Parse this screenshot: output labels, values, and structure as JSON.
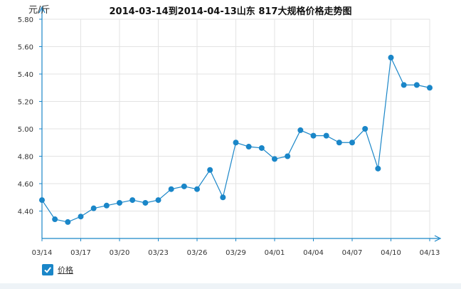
{
  "chart_data": {
    "type": "line",
    "title": "2014-03-14到2014-04-13山东  817大规格价格走势图",
    "ylabel": "元/斤",
    "xlabel": "",
    "ylim": [
      4.2,
      5.8
    ],
    "yticks": [
      "4.40",
      "4.60",
      "4.80",
      "5.00",
      "5.20",
      "5.40",
      "5.60",
      "5.80"
    ],
    "xtick_labels": [
      "03/14",
      "03/17",
      "03/20",
      "03/23",
      "03/26",
      "03/29",
      "04/01",
      "04/04",
      "04/07",
      "04/10",
      "04/13"
    ],
    "x": [
      "03/14",
      "03/15",
      "03/16",
      "03/17",
      "03/18",
      "03/19",
      "03/20",
      "03/21",
      "03/22",
      "03/23",
      "03/24",
      "03/25",
      "03/26",
      "03/27",
      "03/28",
      "03/29",
      "03/30",
      "03/31",
      "04/01",
      "04/02",
      "04/03",
      "04/04",
      "04/05",
      "04/06",
      "04/07",
      "04/08",
      "04/09",
      "04/10",
      "04/11",
      "04/12",
      "04/13"
    ],
    "series": [
      {
        "name": "价格",
        "color": "#1a86c8",
        "values": [
          4.48,
          4.34,
          4.32,
          4.36,
          4.42,
          4.44,
          4.46,
          4.48,
          4.46,
          4.48,
          4.56,
          4.58,
          4.56,
          4.7,
          4.5,
          4.9,
          4.87,
          4.86,
          4.78,
          4.8,
          4.99,
          4.95,
          4.95,
          4.9,
          4.9,
          5.0,
          4.71,
          5.52,
          5.32,
          5.32,
          5.3
        ]
      }
    ],
    "grid": true,
    "legend_position": "bottom-left"
  },
  "legend": {
    "label": "价格",
    "checked": true,
    "check_icon": "check-icon"
  }
}
